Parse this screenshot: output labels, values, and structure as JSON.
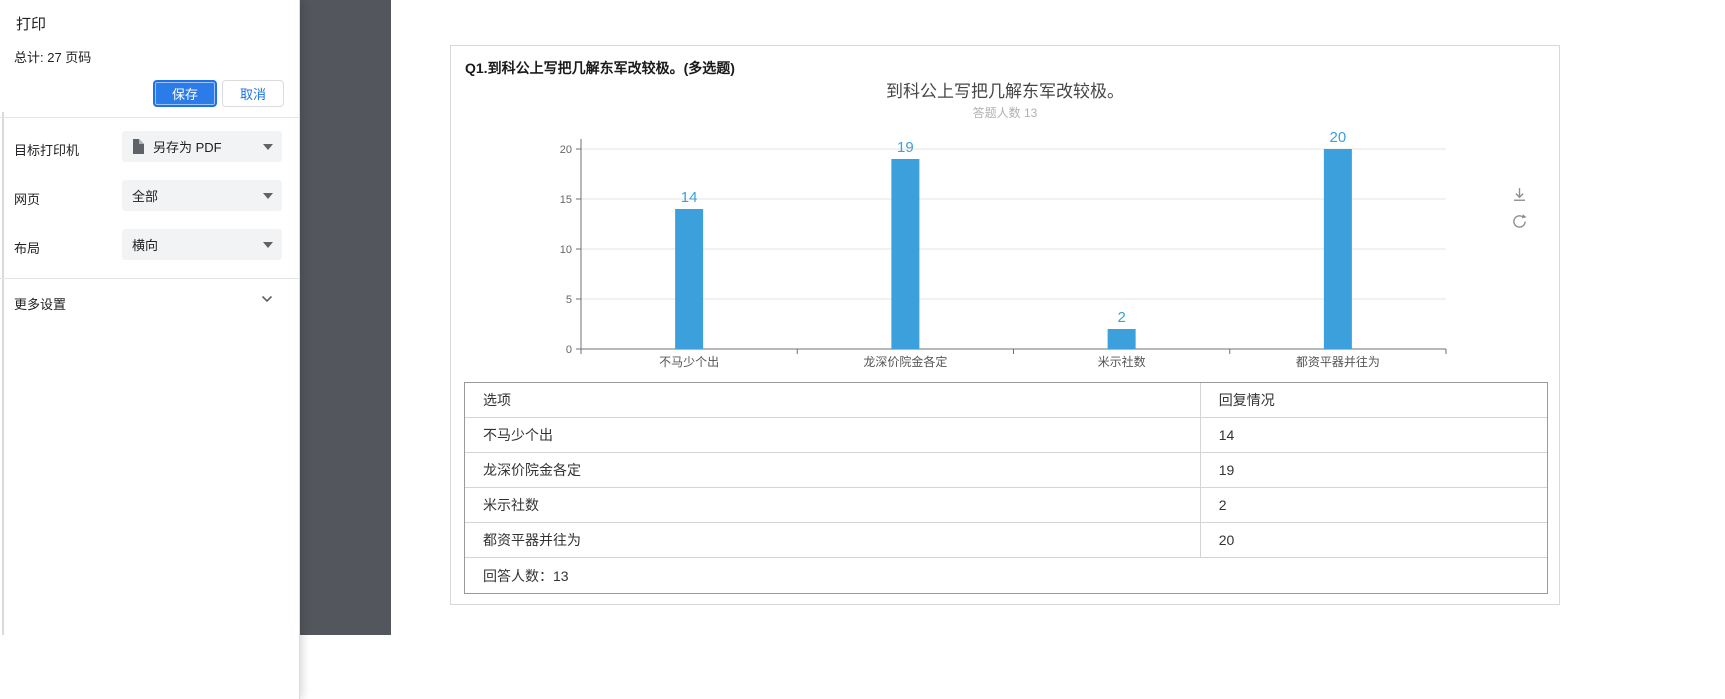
{
  "dialog": {
    "title": "打印",
    "total": "总计: 27 页码",
    "save_label": "保存",
    "cancel_label": "取消",
    "fields": [
      {
        "label": "目标打印机",
        "value": "另存为 PDF",
        "icon": "pdf-file-icon"
      },
      {
        "label": "网页",
        "value": "全部"
      },
      {
        "label": "布局",
        "value": "横向"
      }
    ],
    "more_settings_label": "更多设置"
  },
  "preview": {
    "question_title": "Q1.到科公上写把几解东军改较极。(多选题)",
    "tools": [
      "download-icon",
      "refresh-icon"
    ],
    "table": {
      "headers": [
        "选项",
        "回复情况"
      ],
      "rows": [
        [
          "不马少个出",
          "14"
        ],
        [
          "龙深价院金各定",
          "19"
        ],
        [
          "米示社数",
          "2"
        ],
        [
          "都资平器并往为",
          "20"
        ]
      ],
      "footer": "回答人数：13"
    }
  },
  "chart_data": {
    "type": "bar",
    "title": "到科公上写把几解东军改较极。",
    "subtitle": "答题人数 13",
    "categories": [
      "不马少个出",
      "龙深价院金各定",
      "米示社数",
      "都资平器并往为"
    ],
    "values": [
      14,
      19,
      2,
      20
    ],
    "ylim": [
      0,
      20
    ],
    "yticks": [
      0,
      5,
      10,
      15,
      20
    ],
    "bar_color": "#3BA0DB",
    "axis_color": "#6e7079",
    "grid_color": "#e6e6e6",
    "grid": true,
    "legend": "none",
    "value_labels": true
  }
}
